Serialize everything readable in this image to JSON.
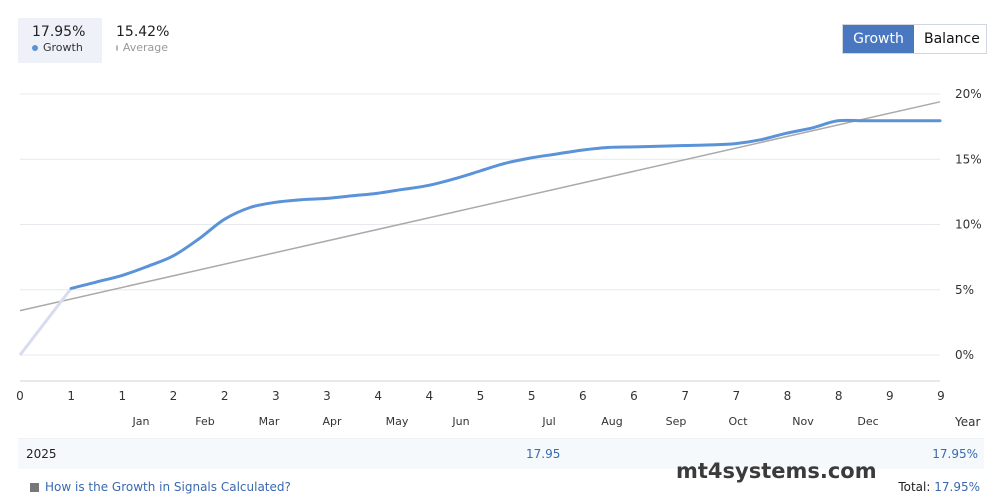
{
  "summary": {
    "growth": {
      "value": "17.95%",
      "label": "Growth",
      "color": "#5b93d8"
    },
    "average": {
      "value": "15.42%",
      "label": "Average",
      "color": "#b0b0b0"
    }
  },
  "toggle": {
    "growth_label": "Growth",
    "balance_label": "Balance",
    "active": "Growth"
  },
  "chart_data": {
    "type": "line",
    "x_ticks": [
      "0",
      "1",
      "1",
      "2",
      "2",
      "3",
      "3",
      "4",
      "4",
      "5",
      "5",
      "6",
      "6",
      "7",
      "7",
      "8",
      "8",
      "9",
      "9"
    ],
    "x_axis_label": "Year",
    "months": [
      "Jan",
      "Feb",
      "Mar",
      "Apr",
      "May",
      "Jun",
      "Jul",
      "Aug",
      "Sep",
      "Oct",
      "Nov",
      "Dec"
    ],
    "y_ticks": [
      "20%",
      "15%",
      "10%",
      "5%",
      "0%"
    ],
    "ylim": [
      0,
      20
    ],
    "grid": true,
    "series": [
      {
        "name": "Growth",
        "color": "#5b93d8",
        "x": [
          0,
          1,
          1.5,
          2,
          2.5,
          3,
          3.5,
          4,
          4.5,
          5,
          5.5,
          6,
          6.5,
          7,
          7.5,
          8,
          8.5,
          9,
          9.5,
          10,
          10.5,
          11,
          11.5,
          12,
          12.5,
          13,
          13.5,
          14,
          14.5,
          15,
          15.5,
          16,
          16.5,
          17,
          17.5,
          18
        ],
        "y": [
          0.0,
          5.1,
          5.6,
          6.1,
          6.8,
          7.6,
          8.9,
          10.4,
          11.3,
          11.7,
          11.9,
          12.0,
          12.2,
          12.4,
          12.7,
          13.0,
          13.5,
          14.1,
          14.7,
          15.1,
          15.4,
          15.7,
          15.9,
          15.95,
          16.0,
          16.05,
          16.1,
          16.2,
          16.5,
          17.0,
          17.4,
          17.95,
          17.95,
          17.95,
          17.95,
          17.95
        ]
      },
      {
        "name": "Average",
        "color": "#aaaaaa",
        "x": [
          0,
          18
        ],
        "y": [
          3.4,
          19.4
        ]
      }
    ]
  },
  "year_row": {
    "year": "2025",
    "mid_value": "17.95",
    "end_value": "17.95%"
  },
  "footer": {
    "help_link": "How is the Growth in Signals Calculated?",
    "total_label": "Total:",
    "total_value": "17.95%",
    "watermark": "mt4systems.com"
  }
}
